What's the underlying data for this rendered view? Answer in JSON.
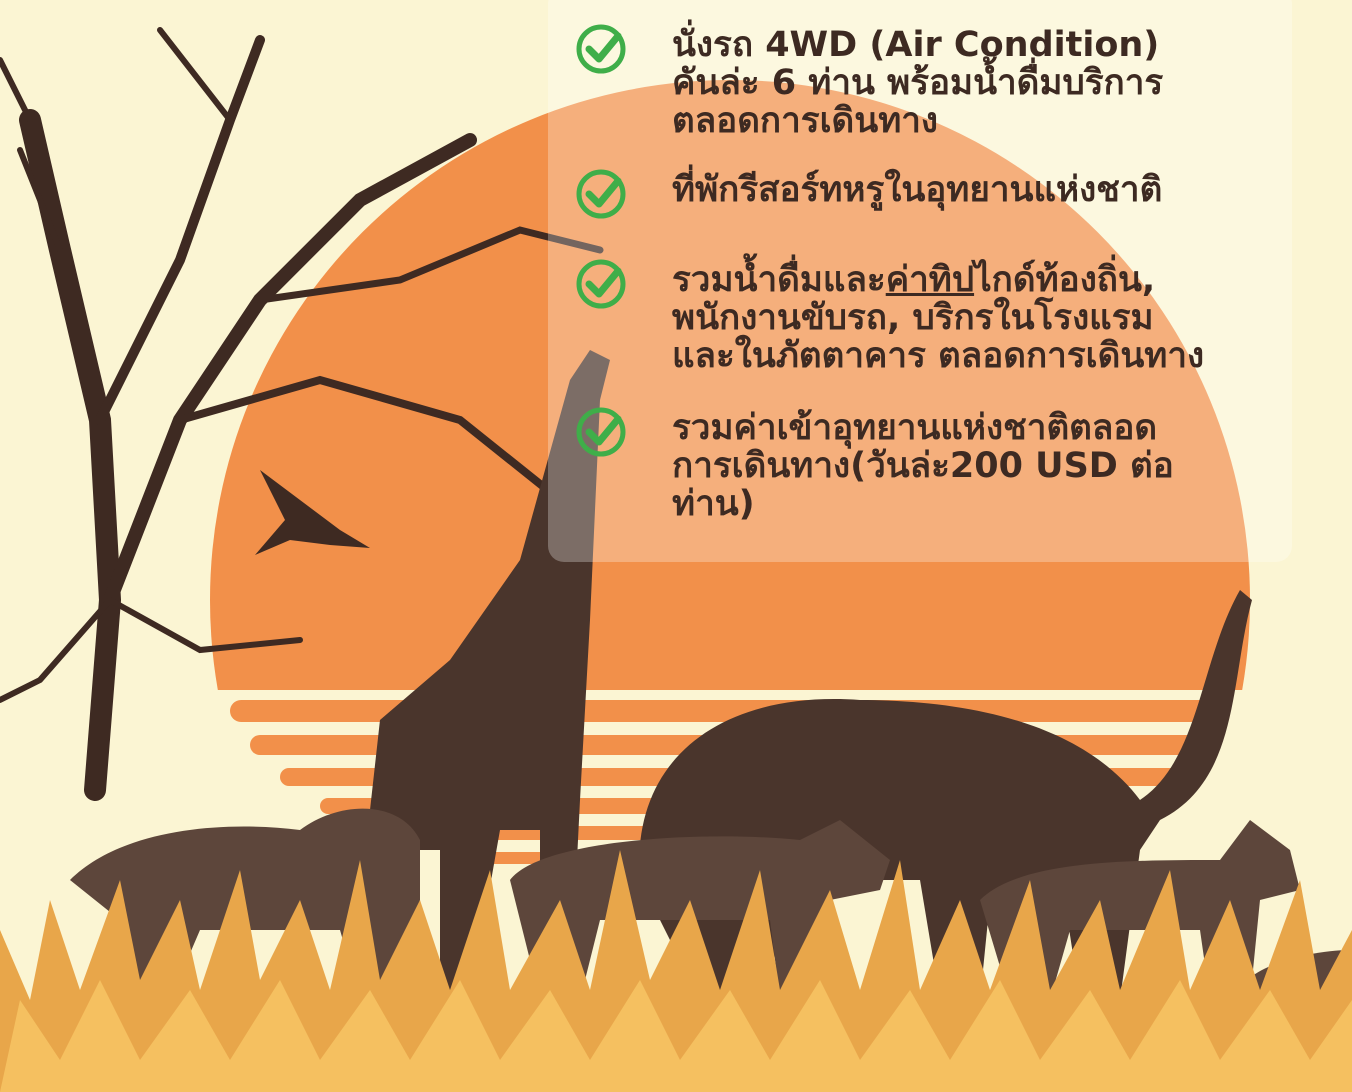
{
  "items": [
    {
      "lines": [
        [
          "นั่งรถ 4WD (Air Condition)"
        ],
        [
          "คันล่ะ 6 ท่าน พร้อมน้ำดื่มบริการ"
        ],
        [
          "ตลอดการเดินทาง"
        ]
      ]
    },
    {
      "lines": [
        [
          "ที่พักรีสอร์ทหรูในอุทยานแห่งชาติ"
        ]
      ]
    },
    {
      "lines": [
        [
          "รวมน้ำดื่มและ",
          "ค่าทิป",
          "ไกด์ท้องถิ่น,"
        ],
        [
          "พนักงานขับรถ, บริกรในโรงแรม"
        ],
        [
          "และในภัตตาคาร ตลอดการเดินทาง"
        ]
      ]
    },
    {
      "lines": [
        [
          "รวมค่าเข้าอุทยานแห่งชาติตลอด"
        ],
        [
          "การเดินทาง(วันล่ะ200 USD ต่อ"
        ],
        [
          "ท่าน)"
        ]
      ]
    }
  ]
}
